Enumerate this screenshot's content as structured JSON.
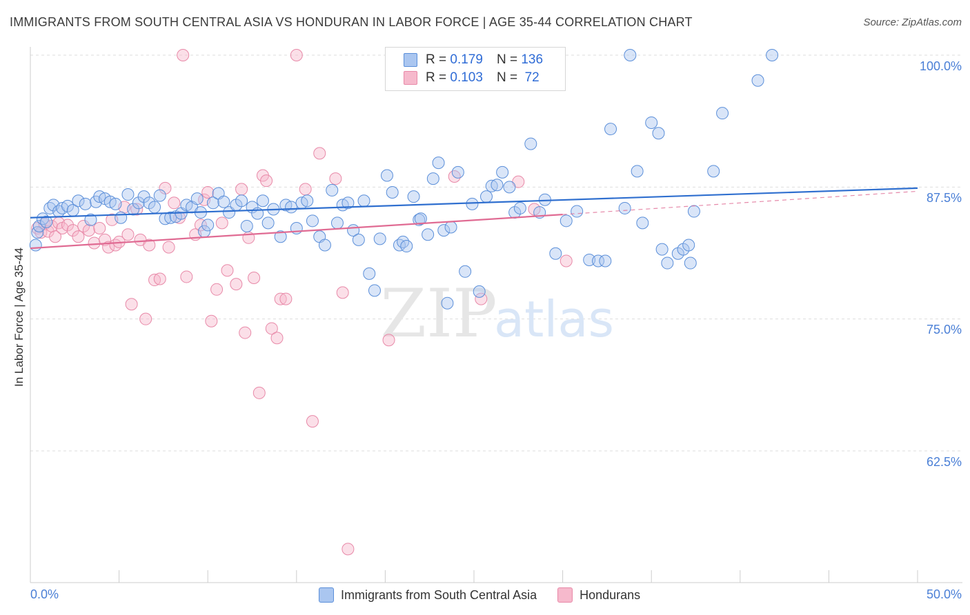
{
  "header": {
    "title": "IMMIGRANTS FROM SOUTH CENTRAL ASIA VS HONDURAN IN LABOR FORCE | AGE 35-44 CORRELATION CHART",
    "source": "Source: ZipAtlas.com"
  },
  "watermark": {
    "zip": "ZIP",
    "atlas": "atlas"
  },
  "legend": {
    "r_label": "R =",
    "n_label": "N =",
    "series1": {
      "r": "0.179",
      "n": "136"
    },
    "series2": {
      "r": "0.103",
      "n": "72"
    }
  },
  "colors": {
    "blue_fill": "#aac6f0",
    "blue_stroke": "#5b8fd9",
    "blue_line": "#2f6fcf",
    "pink_fill": "#f6b9cc",
    "pink_stroke": "#e889a8",
    "pink_line": "#e06b93",
    "tick_text": "#4a7fd6",
    "grid": "#dddddd"
  },
  "chart_data": {
    "type": "scatter",
    "title": "IMMIGRANTS FROM SOUTH CENTRAL ASIA VS HONDURAN IN LABOR FORCE | AGE 35-44 CORRELATION CHART",
    "xlabel": "",
    "ylabel": "In Labor Force | Age 35-44",
    "xlim": [
      0,
      50
    ],
    "ylim": [
      50,
      102
    ],
    "x_tick_labels": [
      "0.0%",
      "50.0%"
    ],
    "y_ticks": [
      62.5,
      75.0,
      87.5,
      100.0
    ],
    "y_tick_labels": [
      "62.5%",
      "75.0%",
      "87.5%",
      "100.0%"
    ],
    "grid": true,
    "legend_position": "top-center",
    "series": [
      {
        "name": "Immigrants from South Central Asia",
        "r": 0.179,
        "n": 136,
        "trend": {
          "x": [
            0,
            50
          ],
          "y": [
            84.6,
            87.4
          ]
        },
        "points": [
          [
            0.3,
            82.0
          ],
          [
            0.4,
            83.2
          ],
          [
            0.5,
            83.8
          ],
          [
            0.7,
            84.5
          ],
          [
            0.9,
            84.2
          ],
          [
            1.1,
            85.5
          ],
          [
            1.3,
            85.8
          ],
          [
            1.6,
            85.2
          ],
          [
            1.8,
            85.5
          ],
          [
            2.1,
            85.7
          ],
          [
            2.4,
            85.3
          ],
          [
            2.7,
            86.2
          ],
          [
            3.1,
            85.9
          ],
          [
            3.4,
            84.4
          ],
          [
            3.7,
            86.1
          ],
          [
            3.9,
            86.6
          ],
          [
            4.2,
            86.4
          ],
          [
            4.5,
            86.1
          ],
          [
            4.8,
            85.9
          ],
          [
            5.1,
            84.6
          ],
          [
            5.5,
            86.8
          ],
          [
            5.8,
            85.4
          ],
          [
            6.1,
            86.0
          ],
          [
            6.4,
            86.6
          ],
          [
            6.7,
            86.0
          ],
          [
            7.0,
            85.6
          ],
          [
            7.3,
            86.7
          ],
          [
            7.6,
            84.5
          ],
          [
            7.9,
            84.6
          ],
          [
            8.2,
            84.7
          ],
          [
            8.5,
            85.0
          ],
          [
            8.8,
            85.8
          ],
          [
            9.1,
            85.6
          ],
          [
            9.4,
            86.4
          ],
          [
            9.6,
            85.1
          ],
          [
            9.8,
            83.3
          ],
          [
            10.0,
            83.9
          ],
          [
            10.3,
            86.0
          ],
          [
            10.6,
            86.9
          ],
          [
            10.9,
            86.1
          ],
          [
            11.2,
            85.1
          ],
          [
            11.6,
            85.8
          ],
          [
            11.9,
            86.2
          ],
          [
            12.2,
            83.8
          ],
          [
            12.5,
            85.6
          ],
          [
            12.8,
            85.0
          ],
          [
            13.1,
            86.2
          ],
          [
            13.4,
            84.1
          ],
          [
            13.7,
            85.4
          ],
          [
            14.1,
            82.8
          ],
          [
            14.4,
            85.8
          ],
          [
            14.7,
            85.6
          ],
          [
            15.0,
            83.6
          ],
          [
            15.3,
            86.0
          ],
          [
            15.6,
            86.2
          ],
          [
            15.9,
            84.3
          ],
          [
            16.3,
            82.8
          ],
          [
            16.6,
            82.0
          ],
          [
            17.0,
            87.2
          ],
          [
            17.3,
            84.1
          ],
          [
            17.6,
            85.8
          ],
          [
            17.9,
            86.0
          ],
          [
            18.2,
            83.4
          ],
          [
            18.5,
            82.5
          ],
          [
            18.8,
            86.2
          ],
          [
            19.1,
            79.3
          ],
          [
            19.4,
            77.7
          ],
          [
            19.7,
            82.6
          ],
          [
            20.1,
            88.6
          ],
          [
            20.4,
            87.0
          ],
          [
            20.8,
            82.0
          ],
          [
            21.0,
            82.3
          ],
          [
            21.2,
            81.9
          ],
          [
            21.6,
            86.6
          ],
          [
            21.9,
            84.4
          ],
          [
            22.0,
            84.5
          ],
          [
            22.4,
            83.0
          ],
          [
            22.7,
            88.3
          ],
          [
            23.0,
            89.8
          ],
          [
            23.3,
            83.4
          ],
          [
            23.7,
            83.7
          ],
          [
            23.5,
            76.5
          ],
          [
            24.1,
            88.9
          ],
          [
            24.5,
            79.5
          ],
          [
            24.9,
            85.9
          ],
          [
            25.3,
            77.6
          ],
          [
            25.7,
            86.6
          ],
          [
            26.0,
            87.6
          ],
          [
            26.3,
            87.7
          ],
          [
            26.6,
            88.9
          ],
          [
            27.0,
            87.5
          ],
          [
            27.3,
            85.1
          ],
          [
            27.6,
            85.5
          ],
          [
            28.2,
            91.6
          ],
          [
            28.7,
            85.1
          ],
          [
            29.0,
            86.3
          ],
          [
            29.6,
            81.2
          ],
          [
            30.2,
            84.3
          ],
          [
            30.8,
            85.2
          ],
          [
            31.5,
            80.6
          ],
          [
            32.0,
            80.5
          ],
          [
            32.4,
            80.5
          ],
          [
            32.7,
            93.0
          ],
          [
            33.5,
            85.5
          ],
          [
            33.8,
            100.0
          ],
          [
            34.2,
            89.0
          ],
          [
            34.5,
            84.1
          ],
          [
            35.0,
            93.6
          ],
          [
            35.4,
            92.6
          ],
          [
            35.6,
            81.6
          ],
          [
            35.9,
            80.3
          ],
          [
            36.5,
            81.2
          ],
          [
            36.8,
            81.6
          ],
          [
            37.1,
            82.0
          ],
          [
            37.2,
            80.3
          ],
          [
            37.4,
            85.2
          ],
          [
            38.5,
            89.0
          ],
          [
            39.0,
            94.5
          ],
          [
            41.0,
            97.6
          ],
          [
            41.8,
            100.0
          ]
        ]
      },
      {
        "name": "Hondurans",
        "r": 0.103,
        "n": 72,
        "trend": {
          "x": [
            0,
            30
          ],
          "y": [
            81.7,
            84.9
          ]
        },
        "trend_extension": {
          "x": [
            30,
            50
          ],
          "y": [
            84.9,
            87.1
          ]
        },
        "points": [
          [
            0.4,
            83.6
          ],
          [
            0.6,
            83.2
          ],
          [
            0.8,
            84.0
          ],
          [
            1.0,
            83.3
          ],
          [
            1.2,
            83.8
          ],
          [
            1.4,
            82.8
          ],
          [
            1.6,
            84.1
          ],
          [
            1.8,
            83.6
          ],
          [
            2.1,
            83.9
          ],
          [
            2.4,
            83.4
          ],
          [
            2.7,
            82.8
          ],
          [
            3.0,
            83.8
          ],
          [
            3.3,
            83.4
          ],
          [
            3.6,
            82.2
          ],
          [
            3.9,
            83.6
          ],
          [
            4.2,
            82.5
          ],
          [
            4.4,
            81.8
          ],
          [
            4.6,
            84.4
          ],
          [
            4.8,
            82.0
          ],
          [
            5.0,
            82.3
          ],
          [
            5.3,
            85.6
          ],
          [
            5.5,
            83.0
          ],
          [
            5.7,
            76.4
          ],
          [
            6.0,
            85.4
          ],
          [
            6.2,
            82.5
          ],
          [
            6.5,
            75.0
          ],
          [
            6.7,
            82.0
          ],
          [
            7.0,
            78.7
          ],
          [
            7.3,
            78.8
          ],
          [
            7.6,
            87.4
          ],
          [
            7.8,
            81.8
          ],
          [
            8.1,
            86.0
          ],
          [
            8.4,
            84.6
          ],
          [
            8.8,
            79.0
          ],
          [
            9.3,
            83.0
          ],
          [
            9.6,
            83.9
          ],
          [
            9.8,
            86.3
          ],
          [
            10.0,
            87.0
          ],
          [
            10.2,
            74.8
          ],
          [
            10.5,
            77.8
          ],
          [
            10.8,
            84.1
          ],
          [
            11.1,
            79.6
          ],
          [
            11.6,
            78.3
          ],
          [
            11.9,
            87.3
          ],
          [
            12.1,
            73.7
          ],
          [
            12.3,
            82.7
          ],
          [
            12.6,
            78.9
          ],
          [
            12.9,
            68.0
          ],
          [
            13.1,
            88.6
          ],
          [
            13.3,
            88.1
          ],
          [
            13.6,
            74.1
          ],
          [
            13.9,
            73.2
          ],
          [
            14.1,
            76.9
          ],
          [
            14.4,
            76.9
          ],
          [
            15.5,
            87.3
          ],
          [
            15.9,
            65.3
          ],
          [
            16.3,
            90.7
          ],
          [
            17.2,
            88.3
          ],
          [
            17.6,
            77.5
          ],
          [
            17.9,
            53.2
          ],
          [
            20.2,
            73.0
          ],
          [
            23.9,
            88.5
          ],
          [
            25.4,
            76.9
          ],
          [
            27.5,
            88.0
          ],
          [
            28.4,
            85.4
          ],
          [
            30.2,
            80.5
          ],
          [
            8.6,
            100.0
          ],
          [
            15.0,
            100.0
          ]
        ]
      }
    ]
  }
}
